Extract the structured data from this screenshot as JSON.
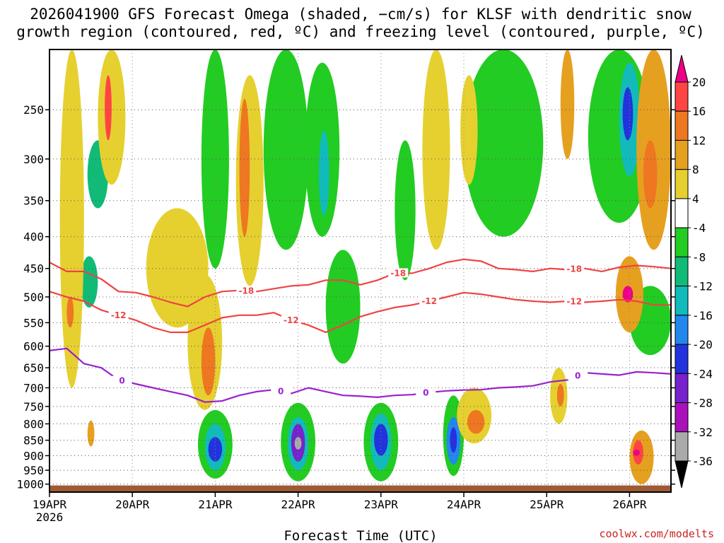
{
  "chart_data": {
    "type": "heatmap",
    "title_line1": "2026041900 GFS Forecast Omega (shaded, −cm/s) for KLSF with dendritic snow",
    "title_line2": "growth region (contoured, red, ºC) and freezing level (contoured, purple, ºC)",
    "xlabel": "Forecast Time (UTC)",
    "ylabel": "",
    "credit": "coolwx.com/modelts",
    "x_ticks": [
      "19APR",
      "20APR",
      "21APR",
      "22APR",
      "23APR",
      "24APR",
      "25APR",
      "26APR"
    ],
    "x_tick_year": "2026",
    "xlim_hours": [
      0,
      180
    ],
    "y_ticks": [
      250,
      300,
      350,
      400,
      450,
      500,
      550,
      600,
      650,
      700,
      750,
      800,
      850,
      900,
      950,
      1000
    ],
    "ylim_hpa": [
      200,
      1030
    ],
    "colorbar_labels": [
      "20",
      "16",
      "12",
      "8",
      "4",
      "-4",
      "-8",
      "-12",
      "-16",
      "-20",
      "-24",
      "-28",
      "-32",
      "-36"
    ],
    "colorbar_bins": [
      {
        "range": ">20",
        "color": "#ee0088"
      },
      {
        "range": "16 to 20",
        "color": "#ff4444"
      },
      {
        "range": "12 to 16",
        "color": "#ee7722"
      },
      {
        "range": "8 to 12",
        "color": "#e6a020"
      },
      {
        "range": "4 to 8",
        "color": "#e6d030"
      },
      {
        "range": "-4 to 4",
        "color": "#ffffff"
      },
      {
        "range": "-8 to -4",
        "color": "#22cc22"
      },
      {
        "range": "-12 to -8",
        "color": "#11bb77"
      },
      {
        "range": "-16 to -12",
        "color": "#11bbbb"
      },
      {
        "range": "-20 to -16",
        "color": "#2288ee"
      },
      {
        "range": "-24 to -20",
        "color": "#2233dd"
      },
      {
        "range": "-28 to -24",
        "color": "#7722cc"
      },
      {
        "range": "-32 to -28",
        "color": "#aa11bb"
      },
      {
        "range": "-36 to -32",
        "color": "#aaaaaa"
      },
      {
        "range": "<-36",
        "color": "#000000"
      }
    ],
    "ground_color": "#9e5a34",
    "ground_hpa": 1005,
    "contours": [
      {
        "name": "isotherm -18C",
        "label": "-18",
        "color": "#ee4444",
        "hours": [
          0,
          5,
          10,
          15,
          20,
          25,
          30,
          35,
          40,
          45,
          50,
          55,
          60,
          65,
          70,
          75,
          80,
          85,
          90,
          95,
          100,
          105,
          110,
          115,
          120,
          125,
          130,
          135,
          140,
          145,
          150,
          155,
          160,
          165,
          170,
          175,
          180
        ],
        "hpa": [
          440,
          455,
          455,
          468,
          490,
          492,
          500,
          510,
          518,
          500,
          490,
          488,
          490,
          485,
          480,
          478,
          470,
          470,
          478,
          470,
          458,
          458,
          450,
          440,
          435,
          438,
          450,
          452,
          455,
          450,
          452,
          450,
          455,
          448,
          445,
          447,
          450
        ],
        "label_hours": [
          57,
          101,
          152
        ]
      },
      {
        "name": "isotherm -12C",
        "label": "-12",
        "color": "#ee4444",
        "hours": [
          0,
          5,
          10,
          15,
          20,
          25,
          30,
          35,
          40,
          45,
          50,
          55,
          60,
          65,
          70,
          75,
          80,
          85,
          90,
          95,
          100,
          105,
          110,
          115,
          120,
          125,
          130,
          135,
          140,
          145,
          150,
          155,
          160,
          165,
          170,
          175,
          180
        ],
        "hpa": [
          490,
          500,
          508,
          525,
          535,
          545,
          560,
          570,
          570,
          555,
          540,
          535,
          535,
          530,
          545,
          555,
          570,
          555,
          538,
          528,
          520,
          515,
          508,
          500,
          492,
          495,
          500,
          505,
          508,
          510,
          508,
          510,
          508,
          505,
          508,
          515,
          515
        ],
        "label_hours": [
          20,
          70,
          110,
          152
        ]
      },
      {
        "name": "freezing level 0C",
        "label": "0",
        "color": "#9922cc",
        "hours": [
          0,
          5,
          10,
          15,
          20,
          25,
          30,
          35,
          40,
          45,
          50,
          55,
          60,
          65,
          70,
          75,
          80,
          85,
          90,
          95,
          100,
          105,
          110,
          115,
          120,
          125,
          130,
          135,
          140,
          145,
          150,
          155,
          160,
          165,
          170,
          175,
          180
        ],
        "hpa": [
          610,
          605,
          640,
          650,
          680,
          690,
          700,
          710,
          720,
          738,
          735,
          720,
          710,
          705,
          715,
          700,
          710,
          720,
          722,
          725,
          720,
          718,
          712,
          708,
          706,
          705,
          700,
          698,
          695,
          685,
          680,
          662,
          665,
          668,
          660,
          662,
          665
        ],
        "label_hours": [
          21,
          67,
          109,
          153
        ]
      }
    ],
    "omega_blobs": [
      {
        "t0": 11,
        "t1": 17,
        "p0": 280,
        "p1": 360,
        "bin": 7
      },
      {
        "t0": 9,
        "t1": 14,
        "p0": 430,
        "p1": 520,
        "bin": 7
      },
      {
        "t0": 44,
        "t1": 52,
        "p0": 200,
        "p1": 450,
        "bin": 6
      },
      {
        "t0": 62,
        "t1": 75,
        "p0": 200,
        "p1": 420,
        "bin": 6
      },
      {
        "t0": 74,
        "t1": 84,
        "p0": 210,
        "p1": 400,
        "bin": 6
      },
      {
        "t0": 78,
        "t1": 81,
        "p0": 270,
        "p1": 370,
        "bin": 8
      },
      {
        "t0": 80,
        "t1": 90,
        "p0": 420,
        "p1": 640,
        "bin": 6
      },
      {
        "t0": 100,
        "t1": 106,
        "p0": 280,
        "p1": 470,
        "bin": 6
      },
      {
        "t0": 120,
        "t1": 143,
        "p0": 200,
        "p1": 400,
        "bin": 6
      },
      {
        "t0": 156,
        "t1": 174,
        "p0": 200,
        "p1": 380,
        "bin": 6
      },
      {
        "t0": 165,
        "t1": 171,
        "p0": 210,
        "p1": 320,
        "bin": 8
      },
      {
        "t0": 166,
        "t1": 169,
        "p0": 230,
        "p1": 280,
        "bin": 10
      },
      {
        "t0": 168,
        "t1": 180,
        "p0": 480,
        "p1": 620,
        "bin": 6
      },
      {
        "t0": 43,
        "t1": 53,
        "p0": 760,
        "p1": 980,
        "bin": 6
      },
      {
        "t0": 45,
        "t1": 51,
        "p0": 800,
        "p1": 950,
        "bin": 8
      },
      {
        "t0": 46,
        "t1": 50,
        "p0": 840,
        "p1": 920,
        "bin": 10
      },
      {
        "t0": 67,
        "t1": 77,
        "p0": 740,
        "p1": 990,
        "bin": 6
      },
      {
        "t0": 69,
        "t1": 75,
        "p0": 780,
        "p1": 950,
        "bin": 8
      },
      {
        "t0": 70,
        "t1": 74,
        "p0": 800,
        "p1": 920,
        "bin": 11
      },
      {
        "t0": 71,
        "t1": 73,
        "p0": 840,
        "p1": 880,
        "bin": 13
      },
      {
        "t0": 91,
        "t1": 101,
        "p0": 740,
        "p1": 990,
        "bin": 6
      },
      {
        "t0": 93,
        "t1": 99,
        "p0": 770,
        "p1": 950,
        "bin": 8
      },
      {
        "t0": 94,
        "t1": 98,
        "p0": 800,
        "p1": 900,
        "bin": 10
      },
      {
        "t0": 114,
        "t1": 120,
        "p0": 720,
        "p1": 970,
        "bin": 6
      },
      {
        "t0": 115,
        "t1": 119,
        "p0": 780,
        "p1": 930,
        "bin": 9
      },
      {
        "t0": 116,
        "t1": 118,
        "p0": 810,
        "p1": 890,
        "bin": 10
      },
      {
        "t0": 3,
        "t1": 10,
        "p0": 200,
        "p1": 700,
        "bin": 4
      },
      {
        "t0": 14,
        "t1": 22,
        "p0": 200,
        "p1": 330,
        "bin": 4
      },
      {
        "t0": 28,
        "t1": 46,
        "p0": 360,
        "p1": 560,
        "bin": 4
      },
      {
        "t0": 40,
        "t1": 50,
        "p0": 460,
        "p1": 760,
        "bin": 4
      },
      {
        "t0": 44,
        "t1": 48,
        "p0": 560,
        "p1": 720,
        "bin": 2
      },
      {
        "t0": 54,
        "t1": 62,
        "p0": 220,
        "p1": 480,
        "bin": 4
      },
      {
        "t0": 55,
        "t1": 58,
        "p0": 240,
        "p1": 400,
        "bin": 2
      },
      {
        "t0": 108,
        "t1": 116,
        "p0": 200,
        "p1": 420,
        "bin": 4
      },
      {
        "t0": 118,
        "t1": 128,
        "p0": 700,
        "p1": 860,
        "bin": 4
      },
      {
        "t0": 121,
        "t1": 126,
        "p0": 760,
        "p1": 830,
        "bin": 2
      },
      {
        "t0": 119,
        "t1": 124,
        "p0": 220,
        "p1": 330,
        "bin": 4
      },
      {
        "t0": 145,
        "t1": 150,
        "p0": 650,
        "p1": 800,
        "bin": 4
      },
      {
        "t0": 147,
        "t1": 149,
        "p0": 690,
        "p1": 750,
        "bin": 2
      },
      {
        "t0": 148,
        "t1": 152,
        "p0": 200,
        "p1": 300,
        "bin": 3
      },
      {
        "t0": 164,
        "t1": 172,
        "p0": 430,
        "p1": 570,
        "bin": 3
      },
      {
        "t0": 166,
        "t1": 169,
        "p0": 480,
        "p1": 510,
        "bin": 0
      },
      {
        "t0": 168,
        "t1": 175,
        "p0": 820,
        "p1": 1000,
        "bin": 3
      },
      {
        "t0": 169,
        "t1": 172,
        "p0": 850,
        "p1": 930,
        "bin": 1
      },
      {
        "t0": 169,
        "t1": 171,
        "p0": 880,
        "p1": 900,
        "bin": 0
      },
      {
        "t0": 170,
        "t1": 180,
        "p0": 200,
        "p1": 420,
        "bin": 3
      },
      {
        "t0": 172,
        "t1": 176,
        "p0": 280,
        "p1": 360,
        "bin": 2
      },
      {
        "t0": 5,
        "t1": 7,
        "p0": 500,
        "p1": 560,
        "bin": 2
      },
      {
        "t0": 11,
        "t1": 13,
        "p0": 790,
        "p1": 870,
        "bin": 3
      },
      {
        "t0": 16,
        "t1": 18,
        "p0": 220,
        "p1": 280,
        "bin": 1
      }
    ]
  }
}
